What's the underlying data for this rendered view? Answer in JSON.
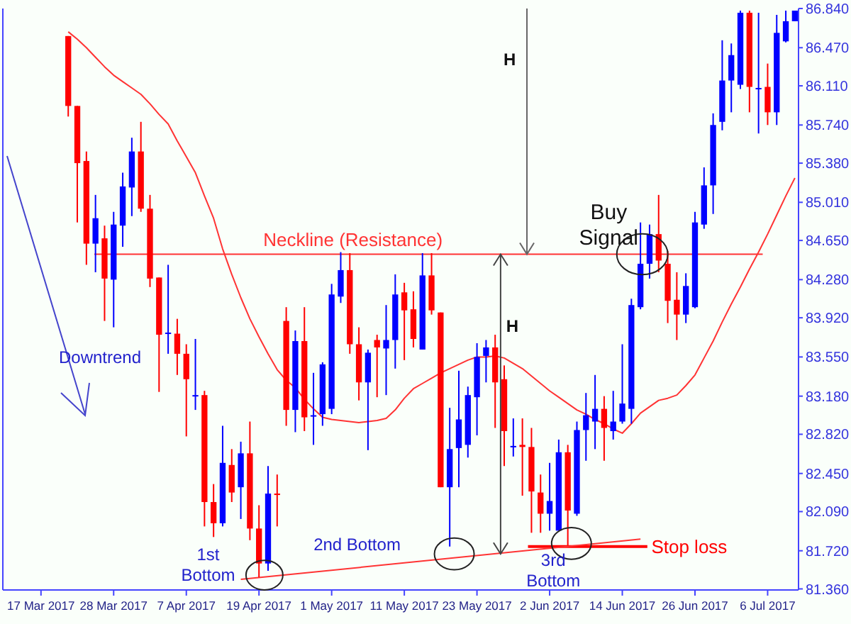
{
  "chart_data": {
    "type": "candlestick",
    "categories": [
      "17 Mar 2017",
      null,
      null,
      null,
      null,
      null,
      null,
      null,
      "28 Mar 2017",
      null,
      null,
      null,
      null,
      null,
      null,
      null,
      "7 Apr 2017",
      null,
      null,
      null,
      null,
      null,
      null,
      null,
      "19 Apr 2017",
      null,
      null,
      null,
      null,
      null,
      null,
      null,
      "1 May 2017",
      null,
      null,
      null,
      null,
      null,
      null,
      null,
      "11 May 2017",
      null,
      null,
      null,
      null,
      null,
      null,
      null,
      "23 May 2017",
      null,
      null,
      null,
      null,
      null,
      null,
      null,
      "2 Jun 2017",
      null,
      null,
      null,
      null,
      null,
      null,
      null,
      "14 Jun 2017",
      null,
      null,
      null,
      null,
      null,
      null,
      null,
      "26 Jun 2017",
      null,
      null,
      null,
      null,
      null,
      null,
      null,
      "6 Jul 2017",
      null,
      null,
      null
    ],
    "ylim": [
      81.35,
      86.84
    ],
    "yticks": [
      {
        "value": 81.36,
        "label": "81.360"
      },
      {
        "value": 81.72,
        "label": "81.720"
      },
      {
        "value": 82.09,
        "label": "82.090"
      },
      {
        "value": 82.45,
        "label": "82.450"
      },
      {
        "value": 82.82,
        "label": "82.820"
      },
      {
        "value": 83.18,
        "label": "83.180"
      },
      {
        "value": 83.55,
        "label": "83.550"
      },
      {
        "value": 83.92,
        "label": "83.920"
      },
      {
        "value": 84.28,
        "label": "84.280"
      },
      {
        "value": 84.65,
        "label": "84.650"
      },
      {
        "value": 85.01,
        "label": "85.010"
      },
      {
        "value": 85.38,
        "label": "85.380"
      },
      {
        "value": 85.74,
        "label": "85.740"
      },
      {
        "value": 86.11,
        "label": "86.110"
      },
      {
        "value": 86.47,
        "label": "86.470"
      },
      {
        "value": 86.84,
        "label": "86.840"
      }
    ],
    "series": [
      {
        "type": "candlestick",
        "ohlc": [
          null,
          null,
          null,
          [
            86.58,
            86.58,
            85.82,
            85.92
          ],
          [
            85.92,
            85.92,
            84.82,
            85.38
          ],
          [
            85.4,
            85.49,
            84.42,
            84.62
          ],
          [
            84.62,
            85.08,
            84.35,
            84.86
          ],
          [
            84.67,
            84.79,
            83.89,
            84.29
          ],
          [
            84.28,
            84.92,
            83.83,
            84.8
          ],
          [
            84.79,
            85.29,
            84.59,
            85.16
          ],
          [
            85.15,
            85.62,
            84.88,
            85.49
          ],
          [
            85.49,
            85.77,
            84.92,
            84.95
          ],
          [
            84.95,
            85.08,
            84.21,
            84.29
          ],
          [
            84.3,
            84.3,
            83.22,
            83.76
          ],
          [
            83.77,
            84.42,
            83.58,
            83.78
          ],
          [
            83.77,
            83.91,
            83.38,
            83.58
          ],
          [
            83.58,
            83.67,
            82.8,
            83.34
          ],
          [
            83.18,
            83.72,
            83.05,
            83.19
          ],
          [
            83.19,
            83.23,
            81.95,
            82.18
          ],
          [
            82.18,
            82.35,
            81.85,
            81.98
          ],
          [
            81.98,
            82.9,
            81.95,
            82.55
          ],
          [
            82.53,
            82.68,
            82.18,
            82.27
          ],
          [
            82.32,
            82.75,
            82.02,
            82.64
          ],
          [
            82.64,
            82.94,
            81.82,
            81.93
          ],
          [
            81.93,
            82.15,
            81.47,
            81.6
          ],
          [
            81.6,
            82.52,
            81.53,
            82.26
          ],
          [
            82.26,
            82.44,
            81.95,
            82.25
          ],
          [
            83.89,
            84.02,
            82.9,
            83.05
          ],
          [
            83.05,
            83.8,
            82.84,
            83.7
          ],
          [
            83.7,
            84.02,
            82.85,
            82.98
          ],
          [
            82.99,
            83.4,
            82.72,
            83.0
          ],
          [
            83.01,
            83.5,
            82.9,
            83.48
          ],
          [
            83.06,
            84.24,
            83.01,
            84.14
          ],
          [
            84.12,
            84.54,
            84.06,
            84.37
          ],
          [
            84.37,
            84.53,
            83.58,
            83.67
          ],
          [
            83.67,
            83.83,
            83.14,
            83.31
          ],
          [
            83.31,
            83.62,
            82.67,
            83.59
          ],
          [
            83.71,
            83.76,
            83.17,
            83.64
          ],
          [
            83.63,
            84.04,
            83.19,
            83.71
          ],
          [
            83.71,
            84.33,
            83.44,
            84.14
          ],
          [
            84.16,
            84.25,
            83.52,
            83.99
          ],
          [
            84.0,
            84.17,
            83.64,
            83.72
          ],
          [
            83.62,
            84.53,
            83.62,
            84.32
          ],
          [
            84.32,
            84.53,
            83.95,
            83.99
          ],
          [
            83.97,
            83.97,
            82.32,
            82.32
          ],
          [
            82.32,
            83.07,
            81.76,
            82.68
          ],
          [
            82.69,
            83.42,
            82.32,
            82.96
          ],
          [
            82.72,
            83.27,
            82.6,
            83.19
          ],
          [
            83.17,
            83.68,
            82.81,
            83.55
          ],
          [
            83.56,
            83.71,
            83.31,
            83.64
          ],
          [
            83.64,
            83.76,
            82.88,
            83.31
          ],
          [
            83.34,
            83.47,
            82.52,
            82.85
          ],
          [
            82.7,
            82.97,
            82.61,
            82.71
          ],
          [
            82.72,
            82.97,
            82.24,
            82.7
          ],
          [
            82.7,
            82.88,
            81.89,
            82.28
          ],
          [
            82.27,
            82.44,
            81.89,
            82.07
          ],
          [
            82.07,
            82.55,
            81.91,
            82.19
          ],
          [
            81.91,
            82.77,
            81.91,
            82.65
          ],
          [
            82.65,
            82.72,
            81.77,
            82.1
          ],
          [
            82.07,
            82.94,
            82.05,
            82.86
          ],
          [
            82.86,
            83.21,
            82.57,
            83.0
          ],
          [
            82.94,
            83.38,
            82.68,
            83.06
          ],
          [
            83.06,
            83.18,
            82.57,
            82.88
          ],
          [
            82.85,
            83.23,
            82.77,
            82.94
          ],
          [
            82.94,
            83.67,
            82.92,
            83.11
          ],
          [
            83.06,
            84.1,
            82.92,
            84.04
          ],
          [
            84.02,
            84.82,
            84.0,
            84.43
          ],
          [
            84.43,
            84.8,
            84.29,
            84.71
          ],
          [
            84.71,
            85.08,
            84.35,
            84.46
          ],
          [
            84.43,
            84.55,
            83.87,
            84.08
          ],
          [
            84.09,
            84.35,
            83.71,
            83.95
          ],
          [
            83.95,
            84.34,
            83.87,
            84.22
          ],
          [
            84.02,
            84.92,
            84.01,
            84.82
          ],
          [
            84.8,
            85.34,
            84.76,
            85.17
          ],
          [
            85.17,
            85.85,
            84.9,
            85.74
          ],
          [
            85.77,
            86.54,
            85.69,
            86.16
          ],
          [
            86.16,
            86.51,
            85.86,
            86.4
          ],
          [
            86.12,
            86.82,
            86.08,
            86.8
          ],
          [
            86.8,
            86.82,
            85.86,
            86.1
          ],
          [
            86.08,
            86.8,
            85.66,
            86.09
          ],
          [
            86.1,
            86.32,
            85.74,
            85.86
          ],
          [
            85.86,
            86.78,
            85.74,
            86.61
          ],
          [
            86.53,
            86.82,
            86.52,
            86.72
          ],
          [
            86.72,
            86.82,
            86.72,
            86.82
          ]
        ],
        "colors": [
          null,
          null,
          null,
          "#ff0000",
          "#ff0000",
          "#ff0000",
          "#0000ff",
          "#ff0000",
          "#0000ff",
          "#0000ff",
          "#0000ff",
          "#ff0000",
          "#ff0000",
          "#ff0000",
          "#0000ff",
          "#ff0000",
          "#ff0000",
          "#0000ff",
          "#ff0000",
          "#ff0000",
          "#0000ff",
          "#ff0000",
          "#0000ff",
          "#ff0000",
          "#ff0000",
          "#0000ff",
          "#ff0000",
          "#ff0000",
          "#0000ff",
          "#ff0000",
          "#0000ff",
          "#0000ff",
          "#0000ff",
          "#0000ff",
          "#ff0000",
          "#ff0000",
          "#0000ff",
          "#ff0000",
          "#0000ff",
          "#0000ff",
          "#ff0000",
          "#ff0000",
          "#0000ff",
          "#ff0000",
          "#ff0000",
          "#0000ff",
          "#0000ff",
          "#0000ff",
          "#0000ff",
          "#0000ff",
          "#ff0000",
          "#ff0000",
          "#0000ff",
          "#ff0000",
          "#ff0000",
          "#ff0000",
          "#0000ff",
          "#0000ff",
          "#ff0000",
          "#0000ff",
          "#0000ff",
          "#0000ff",
          "#ff0000",
          "#0000ff",
          "#0000ff",
          "#0000ff",
          "#0000ff",
          "#0000ff",
          "#ff0000",
          "#ff0000",
          "#ff0000",
          "#0000ff",
          "#0000ff",
          "#0000ff",
          "#0000ff",
          "#0000ff",
          "#0000ff",
          "#0000ff",
          "#ff0000",
          "#0000ff",
          "#ff0000",
          "#0000ff",
          "#0000ff",
          "#0000ff"
        ]
      },
      {
        "type": "line",
        "color": "#ff3333",
        "values": [
          null,
          null,
          null,
          86.62,
          86.55,
          86.47,
          86.38,
          86.29,
          86.21,
          86.15,
          86.09,
          86.03,
          85.94,
          85.84,
          85.75,
          85.59,
          85.44,
          85.29,
          85.07,
          84.86,
          84.57,
          84.33,
          84.11,
          83.91,
          83.74,
          83.58,
          83.43,
          83.33,
          83.26,
          83.15,
          83.06,
          82.98,
          82.96,
          82.95,
          82.94,
          82.93,
          82.94,
          82.95,
          82.97,
          83.05,
          83.16,
          83.25,
          83.3,
          83.35,
          83.4,
          83.44,
          83.48,
          83.52,
          83.55,
          83.55,
          83.56,
          83.54,
          83.49,
          83.44,
          83.37,
          83.3,
          83.23,
          83.17,
          83.11,
          83.05,
          83.01,
          82.96,
          82.92,
          82.87,
          82.83,
          82.92,
          83.02,
          83.08,
          83.14,
          83.16,
          83.19,
          83.28,
          83.38,
          83.54,
          83.7,
          83.88,
          84.05,
          84.21,
          84.38,
          84.54,
          84.71,
          84.89,
          85.07,
          85.24
        ]
      },
      {
        "type": "line",
        "color": "#ff3333",
        "values": [
          null,
          null,
          null,
          null,
          null,
          null,
          null,
          null,
          null,
          null,
          null,
          null,
          null,
          null,
          null,
          null,
          null,
          null,
          null,
          null,
          null,
          null,
          81.45,
          null,
          null,
          null,
          null,
          null,
          null,
          null,
          null,
          null,
          null,
          null,
          null,
          null,
          null,
          null,
          null,
          null,
          null,
          null,
          null,
          null,
          null,
          null,
          null,
          null,
          null,
          null,
          null,
          null,
          null,
          null,
          null,
          null,
          null,
          null,
          null,
          null,
          null,
          null,
          null,
          null,
          null,
          null,
          81.83,
          null,
          null,
          null,
          null,
          null,
          null,
          null,
          null,
          null,
          null,
          null,
          null,
          null,
          null,
          null,
          null,
          null
        ]
      }
    ],
    "ref_lines": [
      {
        "axis": "y",
        "value": 84.52,
        "label": "Neckline (Resistance)",
        "color": "#ff3333"
      },
      {
        "axis": "y",
        "value": 81.76,
        "label": "Stop loss",
        "color": "#ff0000"
      }
    ],
    "annotations": [
      "Downtrend",
      "H",
      "H",
      "1st\nBottom",
      "2nd Bottom",
      "3rd\nBottom",
      "Buy\nSignal"
    ]
  }
}
